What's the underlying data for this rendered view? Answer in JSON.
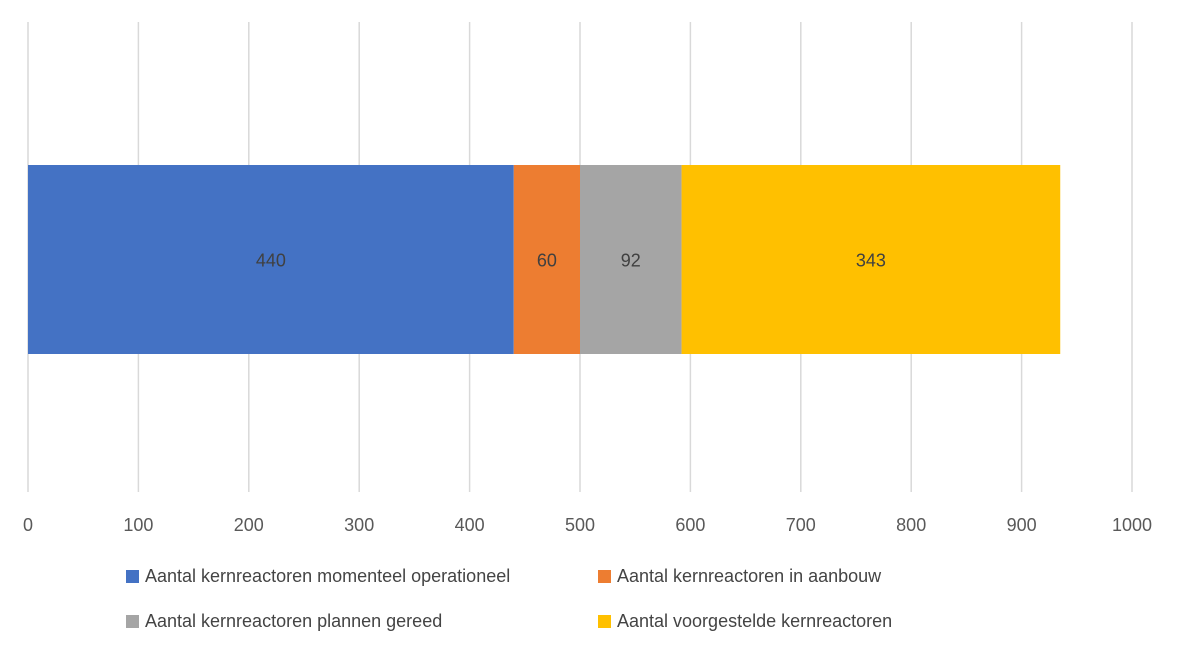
{
  "chart_data": {
    "type": "bar",
    "orientation": "horizontal",
    "stacked": true,
    "categories": [
      ""
    ],
    "series": [
      {
        "name": "Aantal kernreactoren momenteel operationeel",
        "values": [
          440
        ],
        "color": "#4472C4"
      },
      {
        "name": "Aantal kernreactoren in aanbouw",
        "values": [
          60
        ],
        "color": "#ED7D31"
      },
      {
        "name": "Aantal kernreactoren plannen gereed",
        "values": [
          92
        ],
        "color": "#A5A5A5"
      },
      {
        "name": "Aantal voorgestelde kernreactoren",
        "values": [
          343
        ],
        "color": "#FFC000"
      }
    ],
    "xlim": [
      0,
      1000
    ],
    "xticks": [
      0,
      100,
      200,
      300,
      400,
      500,
      600,
      700,
      800,
      900,
      1000
    ],
    "grid": true,
    "legend_position": "bottom"
  }
}
